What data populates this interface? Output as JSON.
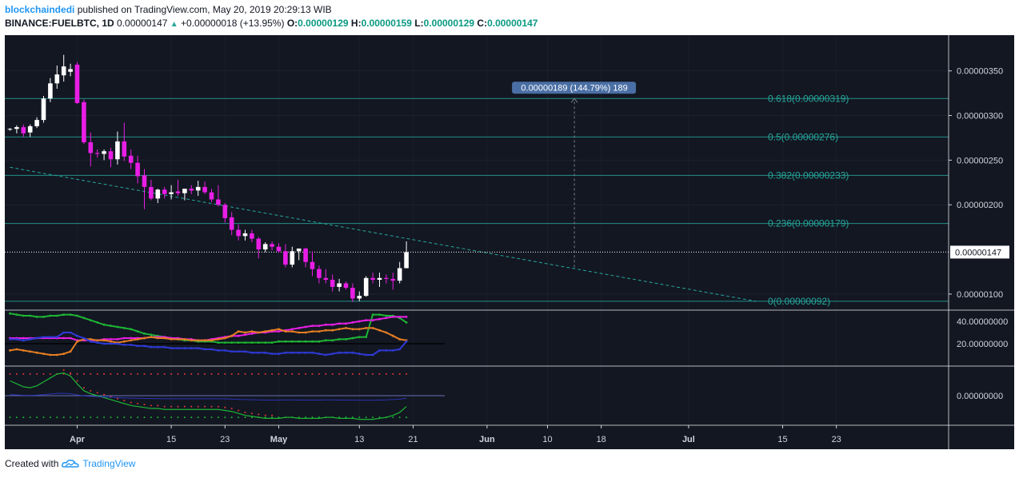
{
  "header": {
    "author": "blockchaindedi",
    "published": "published on TradingView.com, May 20, 2019 20:29:13 WIB",
    "symbol": "BINANCE:FUELBTC, 1D",
    "last": "0.00000147",
    "change": "+0.00000018 (+13.95%)",
    "o_label": "O:",
    "o_value": "0.00000129",
    "h_label": "H:",
    "h_value": "0.00000159",
    "l_label": "L:",
    "l_value": "0.00000129",
    "c_label": "C:",
    "c_value": "0.00000147"
  },
  "footer": {
    "created_with": "Created with",
    "brand": "TradingView"
  },
  "colors": {
    "background": "#131722",
    "panel_border": "#ffffff",
    "up_candle": "#ffffff",
    "down_candle": "#e91ee6",
    "fib_line": "#26a69a",
    "fib_text": "#26a69a",
    "trendline": "#26a69a",
    "axis_text": "#d1d4dc",
    "measure_box": "#4a6fa5",
    "green_line": "#1db534",
    "magenta_line": "#e91ee6",
    "blue_line": "#2e3ad6",
    "orange_line": "#e67e22",
    "red_dots": "#e53935"
  },
  "chart_data": {
    "type": "candlestick",
    "price_axis": {
      "ticks": [
        "0.00000350",
        "0.00000300",
        "0.00000250",
        "0.00000200",
        "0.00000100"
      ],
      "tick_values": [
        350,
        300,
        250,
        200,
        100
      ],
      "range": [
        82,
        390
      ]
    },
    "last_price": {
      "label": "0.00000147",
      "value": 147
    },
    "time_axis": {
      "labels": [
        "Apr",
        "15",
        "23",
        "May",
        "13",
        "21",
        "Jun",
        "10",
        "18",
        "Jul",
        "15",
        "23"
      ],
      "bold": [
        "Apr",
        "May",
        "Jun",
        "Jul"
      ],
      "day_index": [
        10,
        24,
        32,
        40,
        52,
        60,
        71,
        80,
        88,
        101,
        115,
        123
      ]
    },
    "candles_note": "prices in units of 1e-8 BTC; day index 0 = March 22, 2019",
    "candles": [
      [
        0,
        285,
        286,
        283,
        285
      ],
      [
        1,
        285,
        289,
        280,
        287
      ],
      [
        2,
        287,
        290,
        276,
        280
      ],
      [
        3,
        281,
        290,
        276,
        288
      ],
      [
        4,
        288,
        298,
        286,
        295
      ],
      [
        5,
        295,
        322,
        292,
        319
      ],
      [
        6,
        319,
        342,
        315,
        336
      ],
      [
        7,
        336,
        356,
        330,
        346
      ],
      [
        8,
        345,
        368,
        338,
        355
      ],
      [
        9,
        349,
        358,
        344,
        352
      ],
      [
        10,
        357,
        360,
        313,
        314
      ],
      [
        11,
        315,
        318,
        268,
        270
      ],
      [
        12,
        270,
        281,
        243,
        258
      ],
      [
        13,
        258,
        262,
        253,
        257
      ],
      [
        14,
        257,
        262,
        250,
        260
      ],
      [
        15,
        260,
        264,
        242,
        251
      ],
      [
        16,
        251,
        282,
        245,
        271
      ],
      [
        17,
        271,
        292,
        249,
        254
      ],
      [
        18,
        255,
        262,
        240,
        247
      ],
      [
        19,
        247,
        255,
        224,
        232
      ],
      [
        20,
        233,
        240,
        195,
        220
      ],
      [
        21,
        220,
        228,
        205,
        207
      ],
      [
        22,
        207,
        218,
        202,
        217
      ],
      [
        23,
        217,
        220,
        207,
        212
      ],
      [
        24,
        212,
        222,
        206,
        214
      ],
      [
        25,
        215,
        228,
        210,
        213
      ],
      [
        26,
        213,
        218,
        205,
        218
      ],
      [
        27,
        218,
        222,
        212,
        216
      ],
      [
        28,
        216,
        227,
        210,
        220
      ],
      [
        29,
        220,
        226,
        212,
        214
      ],
      [
        30,
        214,
        218,
        203,
        206
      ],
      [
        31,
        206,
        222,
        198,
        200
      ],
      [
        32,
        200,
        202,
        180,
        185
      ],
      [
        33,
        186,
        192,
        166,
        172
      ],
      [
        34,
        172,
        178,
        160,
        165
      ],
      [
        35,
        165,
        172,
        160,
        168
      ],
      [
        36,
        168,
        172,
        158,
        162
      ],
      [
        37,
        162,
        164,
        140,
        150
      ],
      [
        38,
        150,
        158,
        147,
        156
      ],
      [
        39,
        156,
        159,
        149,
        153
      ],
      [
        40,
        153,
        157,
        146,
        148
      ],
      [
        41,
        148,
        156,
        130,
        133
      ],
      [
        42,
        133,
        153,
        130,
        148
      ],
      [
        43,
        148,
        151,
        138,
        151
      ],
      [
        44,
        151,
        152,
        130,
        136
      ],
      [
        45,
        136,
        148,
        120,
        128
      ],
      [
        46,
        128,
        132,
        112,
        118
      ],
      [
        47,
        118,
        128,
        112,
        116
      ],
      [
        48,
        116,
        122,
        103,
        108
      ],
      [
        49,
        108,
        117,
        103,
        112
      ],
      [
        50,
        112,
        114,
        105,
        107
      ],
      [
        51,
        107,
        112,
        91,
        95
      ],
      [
        52,
        95,
        103,
        92,
        98
      ],
      [
        53,
        98,
        120,
        97,
        118
      ],
      [
        54,
        118,
        124,
        112,
        116
      ],
      [
        55,
        116,
        124,
        108,
        118
      ],
      [
        56,
        118,
        122,
        112,
        117
      ],
      [
        57,
        117,
        124,
        105,
        115
      ],
      [
        58,
        115,
        136,
        112,
        129
      ],
      [
        59,
        129,
        159,
        129,
        147
      ]
    ],
    "fibonacci": [
      {
        "label": "0.618(0.00000319)",
        "value": 319
      },
      {
        "label": "0.5(0.00000276)",
        "value": 276
      },
      {
        "label": "0.382(0.00000233)",
        "value": 233
      },
      {
        "label": "0.236(0.00000179)",
        "value": 179
      },
      {
        "label": "0(0.00000092)",
        "value": 92
      }
    ],
    "trendline": {
      "from": [
        0,
        242
      ],
      "to": [
        111,
        92
      ]
    },
    "measure": {
      "label": "0.00000189 (144.79%) 189",
      "day": 84,
      "from": 130,
      "to": 319
    },
    "indicator1": {
      "ticks": [
        "40.00000000",
        "20.00000000"
      ],
      "tick_values": [
        40,
        20
      ],
      "range": [
        0,
        50
      ],
      "series": [
        {
          "color_key": "green_line",
          "values": [
            47,
            46,
            45,
            45,
            44,
            44,
            45,
            45,
            46,
            46,
            45,
            43,
            41,
            39,
            37,
            36,
            35,
            34,
            33,
            31,
            29,
            28,
            27,
            26,
            25,
            24,
            23,
            23,
            22,
            22,
            22,
            21,
            21,
            21,
            21,
            21,
            21,
            21,
            21,
            21,
            22,
            22,
            22,
            22,
            22,
            22,
            22,
            23,
            23,
            24,
            24,
            25,
            26,
            26,
            46,
            46,
            45,
            45,
            43,
            39
          ]
        },
        {
          "color_key": "magenta_line",
          "values": [
            25,
            25,
            25,
            25,
            25,
            25,
            25,
            25,
            25,
            25,
            23,
            23,
            23,
            23,
            24,
            24,
            24,
            25,
            25,
            25,
            25,
            26,
            26,
            26,
            25,
            25,
            24,
            24,
            23,
            23,
            24,
            25,
            26,
            27,
            27,
            28,
            29,
            30,
            30,
            31,
            31,
            32,
            33,
            34,
            35,
            36,
            36,
            37,
            37,
            38,
            38,
            39,
            40,
            41,
            41,
            42,
            43,
            44,
            44,
            44
          ]
        },
        {
          "color_key": "orange_line",
          "values": [
            14,
            15,
            14,
            13,
            12,
            11,
            10,
            10,
            11,
            13,
            22,
            24,
            24,
            23,
            23,
            22,
            21,
            22,
            23,
            24,
            25,
            26,
            25,
            25,
            24,
            24,
            24,
            23,
            23,
            23,
            23,
            24,
            25,
            27,
            31,
            30,
            31,
            30,
            31,
            32,
            33,
            31,
            31,
            30,
            30,
            31,
            31,
            32,
            32,
            33,
            34,
            33,
            33,
            34,
            34,
            32,
            30,
            27,
            24,
            23
          ]
        },
        {
          "color_key": "blue_line",
          "values": [
            24,
            24,
            23,
            24,
            25,
            26,
            26,
            26,
            30,
            30,
            27,
            25,
            22,
            21,
            20,
            20,
            20,
            19,
            19,
            18,
            18,
            17,
            17,
            17,
            16,
            16,
            16,
            16,
            16,
            15,
            15,
            14,
            14,
            13,
            13,
            13,
            12,
            12,
            12,
            11,
            11,
            12,
            12,
            12,
            12,
            12,
            11,
            10,
            11,
            12,
            12,
            12,
            11,
            10,
            10,
            14,
            14,
            14,
            15,
            22
          ]
        }
      ]
    },
    "indicator2": {
      "ticks": [
        "0.00000000"
      ],
      "tick_values": [
        0
      ],
      "range": [
        -30,
        30
      ],
      "zero_line": 0,
      "upper_dots": 22,
      "lower_dots": -22,
      "green_line": [
        15,
        12,
        9,
        8,
        10,
        14,
        18,
        22,
        23,
        20,
        12,
        5,
        2,
        0,
        -2,
        -4,
        -6,
        -8,
        -10,
        -11,
        -12,
        -13,
        -13,
        -14,
        -14,
        -14,
        -14,
        -14,
        -14,
        -14,
        -14,
        -14,
        -15,
        -16,
        -18,
        -20,
        -21,
        -22,
        -23,
        -23,
        -23,
        -22,
        -22,
        -23,
        -23,
        -23,
        -23,
        -22,
        -22,
        -23,
        -23,
        -23,
        -24,
        -24,
        -24,
        -23,
        -22,
        -20,
        -17,
        -11
      ],
      "red_dots_from": 8
    }
  }
}
